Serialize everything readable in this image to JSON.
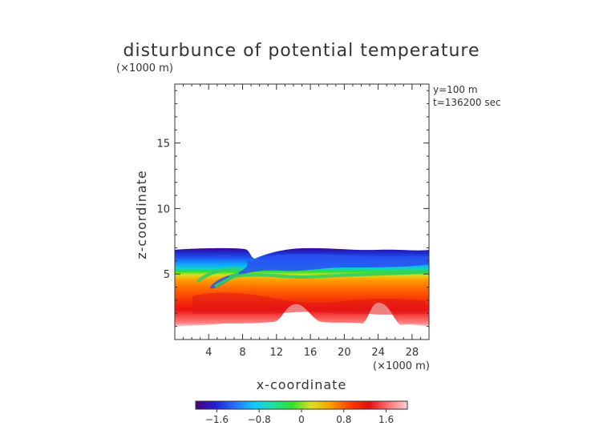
{
  "chart_data": {
    "type": "heatmap",
    "title": "disturbunce of potential temperature",
    "units_top": "(×1000 m)",
    "units_bottom": "(×1000 m)",
    "info_lines": [
      "y=100 m",
      "t=136200 sec"
    ],
    "xlabel": "x-coordinate",
    "ylabel": "z-coordinate",
    "xlim": [
      0,
      30
    ],
    "ylim": [
      0,
      19.5
    ],
    "x_ticks": [
      4,
      8,
      12,
      16,
      20,
      24,
      28
    ],
    "y_ticks": [
      5,
      10,
      15
    ],
    "colorbar": {
      "range": [
        -2,
        2
      ],
      "ticks": [
        -1.6,
        -0.8,
        0,
        0.8,
        1.6
      ],
      "tick_labels": [
        "−1.6",
        "−0.8",
        "0",
        "0.8",
        "1.6"
      ],
      "colors": [
        "#4a0080",
        "#2020d0",
        "#2a6cff",
        "#10c8ff",
        "#20e0a0",
        "#30e030",
        "#d8e020",
        "#ffa000",
        "#ff4000",
        "#e01010",
        "#ff7070",
        "#ffd0d8"
      ]
    },
    "field_description_values": {
      "cold_layer_top_z": 7.2,
      "warm_layer_bottom_z_min": 1.2,
      "zero_line_z_approx": 5.4
    }
  }
}
